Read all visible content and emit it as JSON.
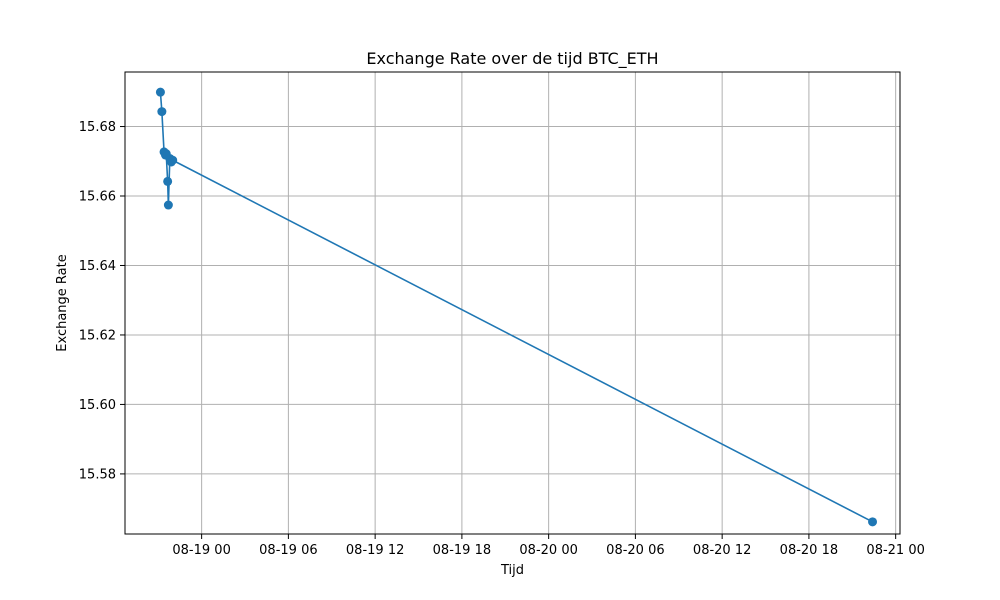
{
  "chart_data": {
    "type": "line",
    "title": "Exchange Rate over de tijd BTC_ETH",
    "xlabel": "Tijd",
    "ylabel": "Exchange Rate",
    "x_unit": "hours since 08-19 00",
    "xlim": [
      -5.3,
      48.3
    ],
    "ylim": [
      15.5627,
      15.6957
    ],
    "grid": true,
    "x_ticks": [
      {
        "value": 0,
        "label": "08-19 00"
      },
      {
        "value": 6,
        "label": "08-19 06"
      },
      {
        "value": 12,
        "label": "08-19 12"
      },
      {
        "value": 18,
        "label": "08-19 18"
      },
      {
        "value": 24,
        "label": "08-20 00"
      },
      {
        "value": 30,
        "label": "08-20 06"
      },
      {
        "value": 36,
        "label": "08-20 12"
      },
      {
        "value": 42,
        "label": "08-20 18"
      },
      {
        "value": 48,
        "label": "08-21 00"
      }
    ],
    "y_ticks": [
      {
        "value": 15.58,
        "label": "15.58"
      },
      {
        "value": 15.6,
        "label": "15.60"
      },
      {
        "value": 15.62,
        "label": "15.62"
      },
      {
        "value": 15.64,
        "label": "15.64"
      },
      {
        "value": 15.66,
        "label": "15.66"
      },
      {
        "value": 15.68,
        "label": "15.68"
      }
    ],
    "series": [
      {
        "name": "BTC_ETH",
        "color": "#1f77b4",
        "marker": "circle",
        "x": [
          -2.85,
          -2.75,
          -2.6,
          -2.5,
          -2.45,
          -2.35,
          -2.3,
          -2.2,
          -2.1,
          -2.0,
          46.4
        ],
        "y": [
          15.6899,
          15.6843,
          15.6727,
          15.6718,
          15.6722,
          15.6642,
          15.6574,
          15.6708,
          15.6698,
          15.6703,
          15.5662
        ]
      }
    ]
  }
}
